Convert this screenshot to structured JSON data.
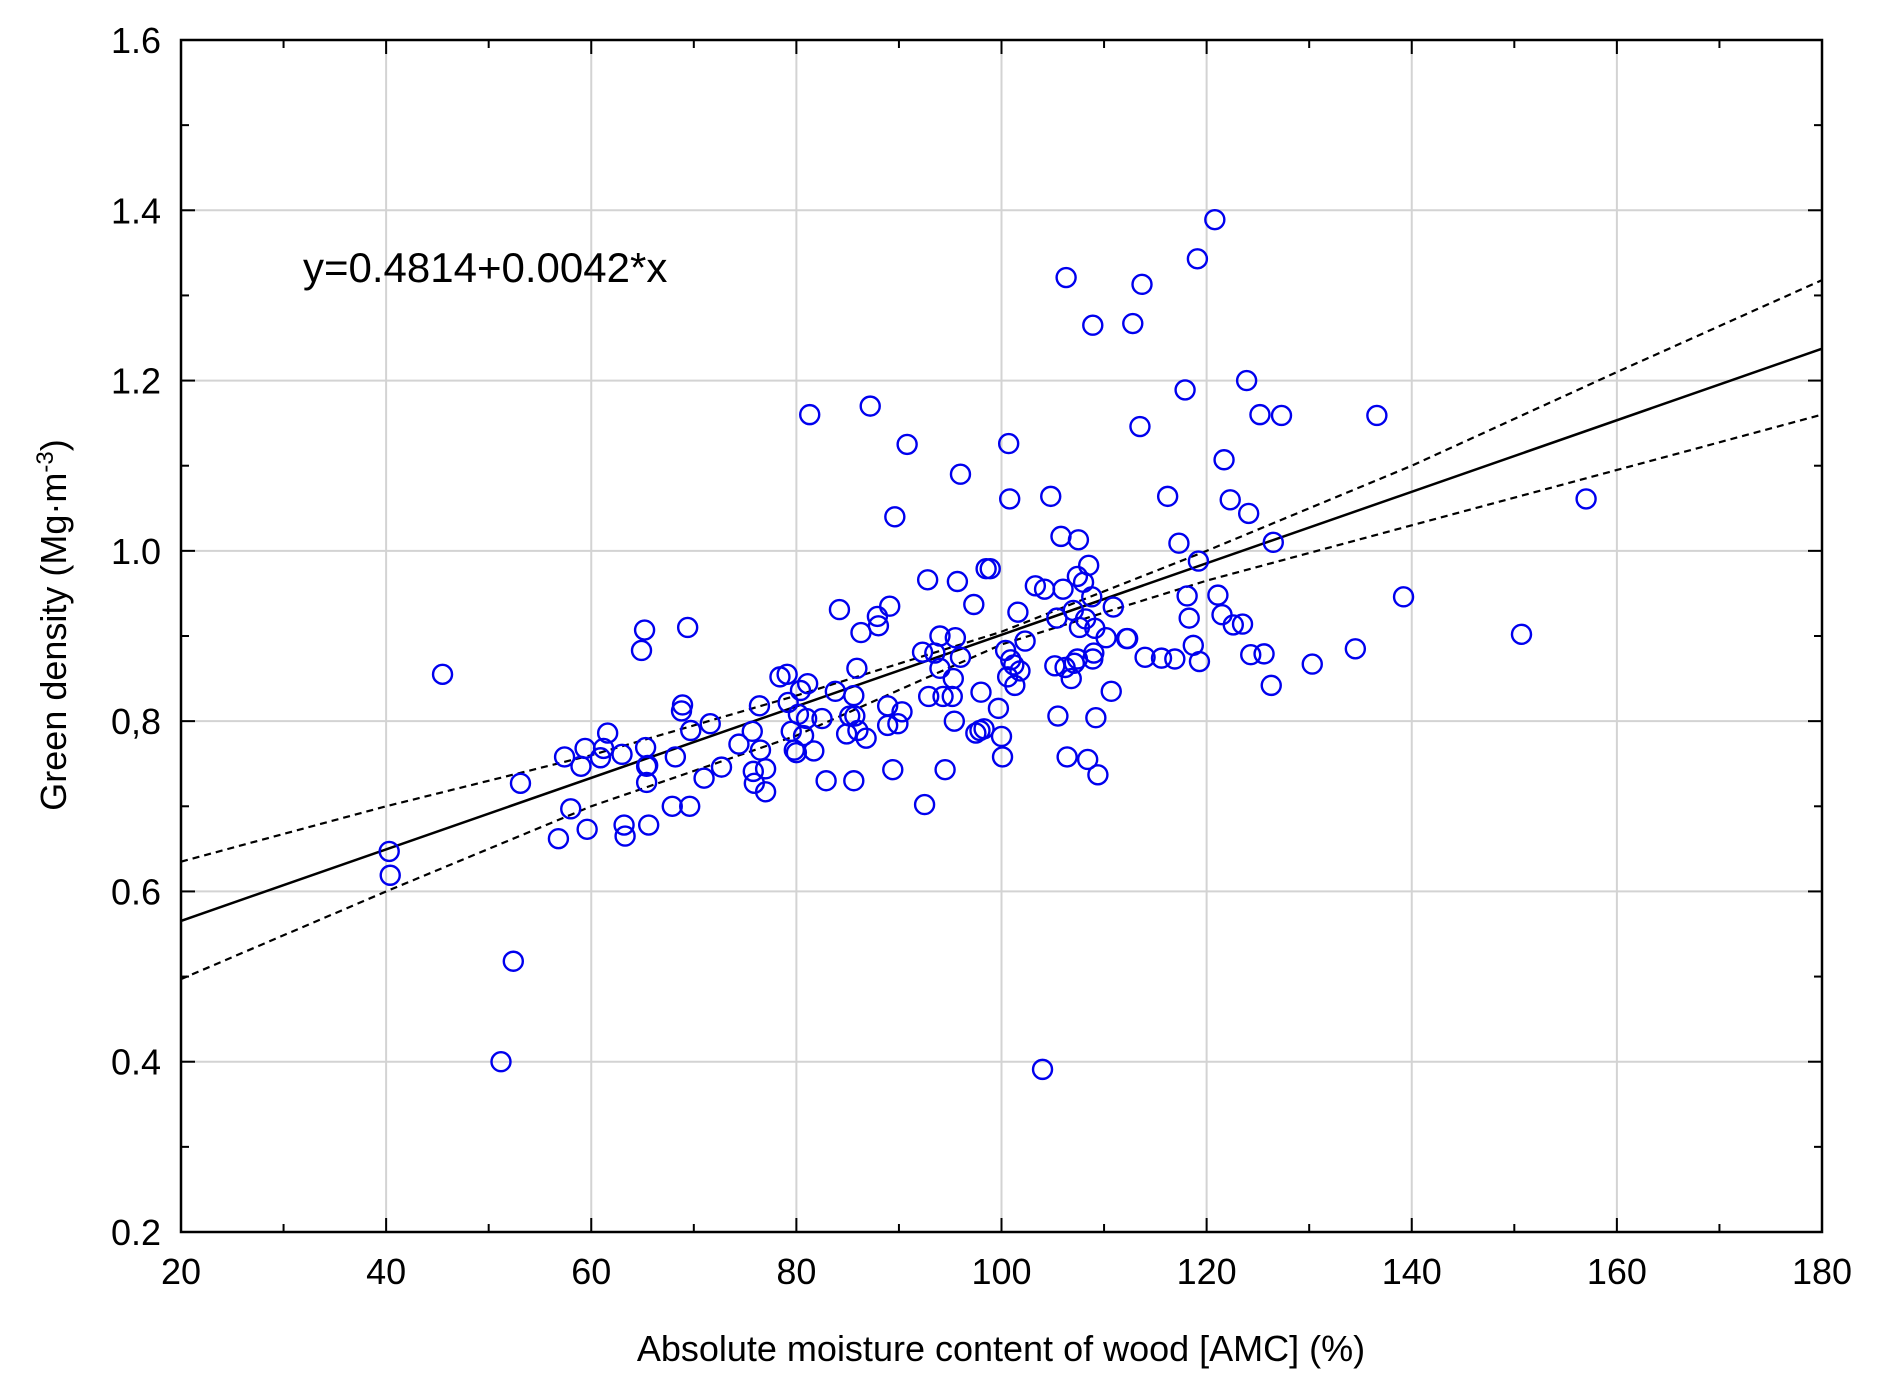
{
  "chart_data": {
    "type": "scatter",
    "title": "",
    "xlabel": "Absolute moisture content of wood [AMC] (%)",
    "ylabel_main": "Green density  (Mg·m",
    "ylabel_sup": "-3",
    "ylabel_tail": ")",
    "xlim": [
      20,
      180
    ],
    "ylim": [
      0.2,
      1.6
    ],
    "grid": true,
    "x_ticks": [
      20,
      40,
      60,
      80,
      100,
      120,
      140,
      160,
      180
    ],
    "x_tick_labels": [
      "20",
      "40",
      "60",
      "80",
      "100",
      "120",
      "140",
      "160",
      "180"
    ],
    "y_ticks": [
      0.2,
      0.4,
      0.6,
      0.8,
      1.0,
      1.2,
      1.4,
      1.6
    ],
    "y_tick_labels": [
      "0.2",
      "0.4",
      "0.6",
      "0,8",
      "1.0",
      "1.2",
      "1.4",
      "1.6"
    ],
    "annotation": "y=0.4814+0.0042*x",
    "regression": {
      "intercept": 0.4814,
      "slope": 0.0042
    },
    "confidence_band": {
      "upper": [
        [
          20,
          0.635
        ],
        [
          40,
          0.7
        ],
        [
          60,
          0.76
        ],
        [
          80,
          0.83
        ],
        [
          100,
          0.905
        ],
        [
          120,
          1.0
        ],
        [
          140,
          1.1
        ],
        [
          160,
          1.21
        ],
        [
          180,
          1.318
        ]
      ],
      "lower": [
        [
          20,
          0.497
        ],
        [
          40,
          0.6
        ],
        [
          60,
          0.7
        ],
        [
          80,
          0.783
        ],
        [
          100,
          0.89
        ],
        [
          120,
          0.965
        ],
        [
          140,
          1.03
        ],
        [
          160,
          1.095
        ],
        [
          180,
          1.16
        ]
      ]
    },
    "marker_color": "#0000ee",
    "line_color": "#000000",
    "points": [
      [
        40.3,
        0.647
      ],
      [
        40.4,
        0.619
      ],
      [
        45.5,
        0.855
      ],
      [
        51.2,
        0.4
      ],
      [
        52.4,
        0.518
      ],
      [
        53.1,
        0.727
      ],
      [
        56.8,
        0.662
      ],
      [
        57.4,
        0.758
      ],
      [
        58.0,
        0.697
      ],
      [
        59.0,
        0.747
      ],
      [
        59.4,
        0.768
      ],
      [
        59.6,
        0.673
      ],
      [
        60.9,
        0.757
      ],
      [
        61.2,
        0.768
      ],
      [
        61.6,
        0.786
      ],
      [
        63.0,
        0.761
      ],
      [
        63.2,
        0.678
      ],
      [
        63.3,
        0.665
      ],
      [
        64.9,
        0.883
      ],
      [
        65.2,
        0.907
      ],
      [
        65.3,
        0.769
      ],
      [
        65.4,
        0.747
      ],
      [
        65.4,
        0.728
      ],
      [
        65.5,
        0.748
      ],
      [
        65.6,
        0.678
      ],
      [
        67.9,
        0.7
      ],
      [
        68.2,
        0.758
      ],
      [
        68.8,
        0.812
      ],
      [
        68.9,
        0.819
      ],
      [
        69.4,
        0.91
      ],
      [
        69.6,
        0.7
      ],
      [
        69.7,
        0.789
      ],
      [
        71.0,
        0.733
      ],
      [
        71.6,
        0.797
      ],
      [
        72.7,
        0.746
      ],
      [
        74.4,
        0.773
      ],
      [
        75.7,
        0.788
      ],
      [
        75.8,
        0.741
      ],
      [
        75.9,
        0.727
      ],
      [
        76.4,
        0.818
      ],
      [
        76.5,
        0.766
      ],
      [
        77.0,
        0.744
      ],
      [
        77.0,
        0.717
      ],
      [
        78.4,
        0.852
      ],
      [
        79.1,
        0.855
      ],
      [
        79.2,
        0.822
      ],
      [
        79.5,
        0.788
      ],
      [
        79.8,
        0.766
      ],
      [
        80.0,
        0.763
      ],
      [
        80.2,
        0.808
      ],
      [
        80.4,
        0.836
      ],
      [
        80.7,
        0.783
      ],
      [
        81.0,
        0.803
      ],
      [
        81.1,
        0.844
      ],
      [
        81.3,
        1.16
      ],
      [
        81.7,
        0.765
      ],
      [
        82.5,
        0.803
      ],
      [
        82.9,
        0.73
      ],
      [
        83.8,
        0.835
      ],
      [
        84.2,
        0.931
      ],
      [
        84.9,
        0.785
      ],
      [
        85.2,
        0.806
      ],
      [
        85.6,
        0.83
      ],
      [
        85.6,
        0.73
      ],
      [
        85.7,
        0.806
      ],
      [
        85.9,
        0.862
      ],
      [
        86.0,
        0.789
      ],
      [
        86.3,
        0.904
      ],
      [
        86.8,
        0.78
      ],
      [
        87.2,
        1.17
      ],
      [
        87.9,
        0.923
      ],
      [
        88.0,
        0.912
      ],
      [
        88.9,
        0.818
      ],
      [
        88.9,
        0.795
      ],
      [
        89.1,
        0.935
      ],
      [
        89.4,
        0.743
      ],
      [
        89.6,
        1.04
      ],
      [
        89.9,
        0.797
      ],
      [
        90.3,
        0.811
      ],
      [
        90.8,
        1.125
      ],
      [
        92.3,
        0.881
      ],
      [
        92.5,
        0.702
      ],
      [
        92.8,
        0.966
      ],
      [
        92.9,
        0.829
      ],
      [
        93.5,
        0.88
      ],
      [
        94.0,
        0.9
      ],
      [
        94.0,
        0.862
      ],
      [
        94.3,
        0.829
      ],
      [
        94.5,
        0.743
      ],
      [
        95.2,
        0.829
      ],
      [
        95.3,
        0.85
      ],
      [
        95.4,
        0.8
      ],
      [
        95.5,
        0.898
      ],
      [
        95.7,
        0.964
      ],
      [
        96.0,
        1.09
      ],
      [
        96.0,
        0.875
      ],
      [
        97.3,
        0.937
      ],
      [
        97.5,
        0.786
      ],
      [
        97.9,
        0.789
      ],
      [
        98.0,
        0.834
      ],
      [
        98.3,
        0.791
      ],
      [
        98.5,
        0.979
      ],
      [
        98.9,
        0.979
      ],
      [
        99.7,
        0.815
      ],
      [
        100.0,
        0.782
      ],
      [
        100.1,
        0.758
      ],
      [
        100.4,
        0.883
      ],
      [
        100.6,
        0.852
      ],
      [
        100.7,
        1.126
      ],
      [
        100.8,
        1.061
      ],
      [
        100.9,
        0.872
      ],
      [
        101.2,
        0.866
      ],
      [
        101.3,
        0.842
      ],
      [
        101.6,
        0.928
      ],
      [
        101.8,
        0.859
      ],
      [
        102.3,
        0.894
      ],
      [
        103.3,
        0.959
      ],
      [
        104.0,
        0.391
      ],
      [
        104.2,
        0.955
      ],
      [
        104.8,
        1.064
      ],
      [
        105.2,
        0.865
      ],
      [
        105.4,
        0.921
      ],
      [
        105.5,
        0.806
      ],
      [
        105.8,
        1.017
      ],
      [
        106.0,
        0.955
      ],
      [
        106.2,
        0.863
      ],
      [
        106.3,
        1.321
      ],
      [
        106.4,
        0.758
      ],
      [
        106.8,
        0.85
      ],
      [
        107.0,
        0.93
      ],
      [
        107.1,
        0.868
      ],
      [
        107.4,
        0.97
      ],
      [
        107.4,
        0.873
      ],
      [
        107.5,
        1.013
      ],
      [
        107.6,
        0.91
      ],
      [
        108.0,
        0.963
      ],
      [
        108.2,
        0.92
      ],
      [
        108.4,
        0.755
      ],
      [
        108.5,
        0.983
      ],
      [
        108.8,
        0.946
      ],
      [
        108.9,
        0.873
      ],
      [
        108.9,
        1.265
      ],
      [
        109.0,
        0.88
      ],
      [
        109.1,
        0.909
      ],
      [
        109.2,
        0.804
      ],
      [
        109.4,
        0.737
      ],
      [
        110.2,
        0.898
      ],
      [
        110.7,
        0.835
      ],
      [
        110.9,
        0.934
      ],
      [
        112.2,
        0.897
      ],
      [
        112.3,
        0.897
      ],
      [
        112.8,
        1.267
      ],
      [
        113.5,
        1.146
      ],
      [
        113.7,
        1.313
      ],
      [
        114.0,
        0.875
      ],
      [
        115.6,
        0.874
      ],
      [
        116.2,
        1.064
      ],
      [
        116.9,
        0.873
      ],
      [
        117.3,
        1.009
      ],
      [
        117.9,
        1.189
      ],
      [
        118.1,
        0.947
      ],
      [
        118.3,
        0.921
      ],
      [
        118.7,
        0.889
      ],
      [
        119.1,
        1.343
      ],
      [
        119.2,
        0.988
      ],
      [
        119.3,
        0.87
      ],
      [
        120.8,
        1.389
      ],
      [
        121.1,
        0.948
      ],
      [
        121.5,
        0.925
      ],
      [
        121.7,
        1.107
      ],
      [
        122.3,
        1.06
      ],
      [
        122.6,
        0.913
      ],
      [
        123.5,
        0.914
      ],
      [
        123.9,
        1.2
      ],
      [
        124.1,
        1.044
      ],
      [
        124.3,
        0.878
      ],
      [
        125.2,
        1.16
      ],
      [
        125.6,
        0.879
      ],
      [
        126.3,
        0.842
      ],
      [
        126.5,
        1.01
      ],
      [
        127.3,
        1.159
      ],
      [
        130.3,
        0.867
      ],
      [
        134.5,
        0.885
      ],
      [
        136.6,
        1.159
      ],
      [
        139.2,
        0.946
      ],
      [
        150.7,
        0.902
      ],
      [
        157.0,
        1.061
      ]
    ]
  }
}
